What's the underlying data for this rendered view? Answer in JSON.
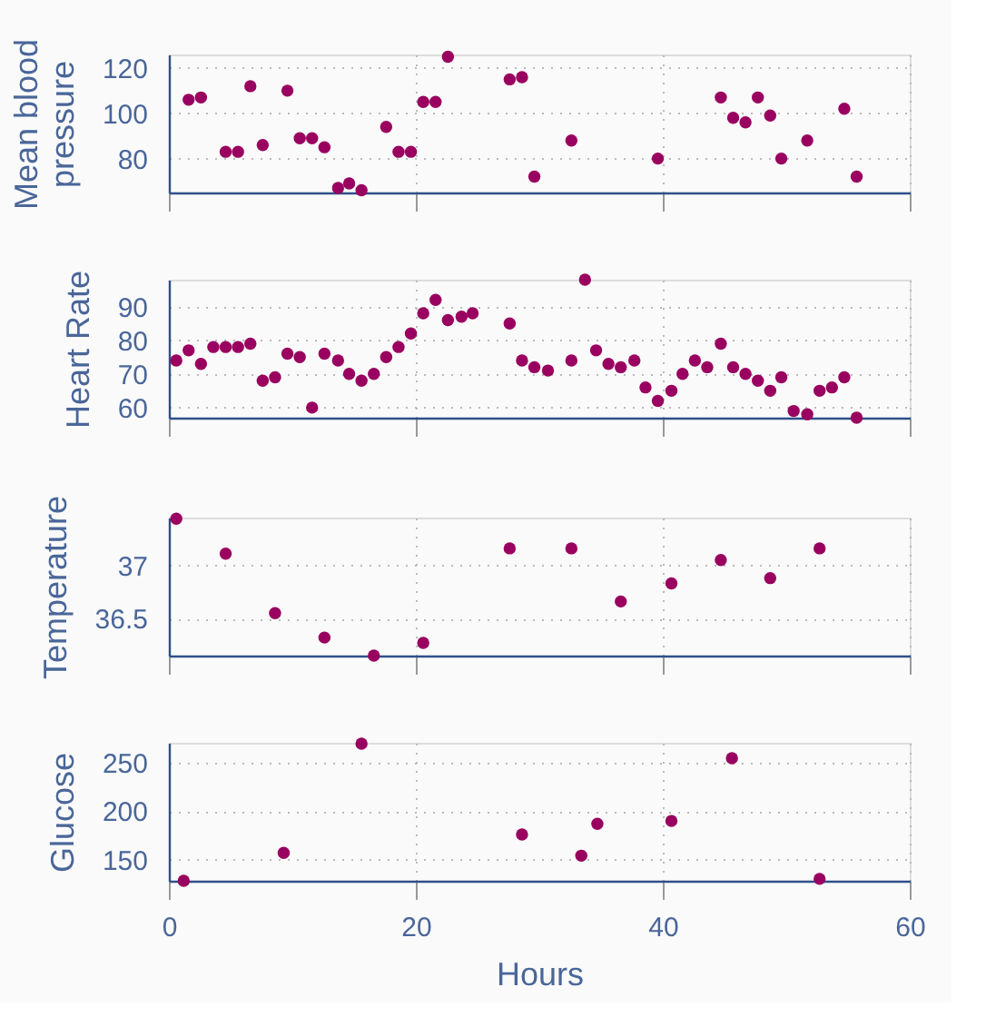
{
  "chart_data": [
    {
      "type": "scatter",
      "ylabel": "Mean blood pressure",
      "x": [
        1.6,
        2.6,
        4.6,
        5.6,
        6.6,
        7.6,
        9.6,
        10.6,
        11.6,
        12.6,
        13.7,
        14.6,
        15.6,
        17.6,
        18.6,
        19.6,
        20.6,
        21.6,
        22.6,
        27.6,
        28.6,
        29.6,
        32.6,
        39.6,
        44.7,
        45.7,
        46.7,
        47.7,
        48.7,
        49.6,
        51.7,
        54.7,
        55.7
      ],
      "series": [
        {
          "color": "#99005f",
          "values": [
            106,
            107,
            83,
            83,
            112,
            86,
            110,
            89,
            89,
            85,
            67,
            69,
            66,
            94,
            83,
            83,
            105,
            105,
            125,
            115,
            116,
            72,
            88,
            80,
            107,
            98,
            96,
            107,
            99,
            80,
            88,
            102,
            72
          ]
        }
      ],
      "xlim": [
        0,
        60
      ],
      "xticks": [
        0,
        20,
        40,
        60
      ],
      "ylim": [
        65,
        126
      ],
      "yticks": [
        80,
        100,
        120
      ],
      "grid": true,
      "marker": "circle",
      "tick_labels": "y",
      "legend": false
    },
    {
      "type": "scatter",
      "ylabel": "Heart Rate",
      "x": [
        0.6,
        1.6,
        2.6,
        3.6,
        4.6,
        5.6,
        6.6,
        7.6,
        8.6,
        9.6,
        10.6,
        11.6,
        12.6,
        13.7,
        14.6,
        15.6,
        16.6,
        17.6,
        18.6,
        19.6,
        20.6,
        21.6,
        22.6,
        23.7,
        24.6,
        27.6,
        28.6,
        29.6,
        30.7,
        32.6,
        33.7,
        34.6,
        35.6,
        36.6,
        37.7,
        38.6,
        39.6,
        40.7,
        41.6,
        42.6,
        43.6,
        44.7,
        45.7,
        46.7,
        47.7,
        48.7,
        49.6,
        50.6,
        51.7,
        52.7,
        53.7,
        54.7,
        55.7
      ],
      "series": [
        {
          "color": "#99005f",
          "values": [
            74,
            77,
            73,
            78,
            78,
            78,
            79,
            68,
            69,
            76,
            75,
            60,
            76,
            74,
            70,
            68,
            70,
            75,
            78,
            82,
            88,
            92,
            86,
            87,
            88,
            85,
            74,
            72,
            71,
            74,
            98,
            77,
            73,
            72,
            74,
            66,
            62,
            65,
            70,
            74,
            72,
            79,
            72,
            70,
            68,
            65,
            69,
            59,
            58,
            65,
            66,
            69,
            57
          ]
        }
      ],
      "xlim": [
        0,
        60
      ],
      "xticks": [
        0,
        20,
        40,
        60
      ],
      "ylim": [
        57,
        98
      ],
      "yticks": [
        60,
        70,
        80,
        90
      ],
      "grid": true,
      "marker": "circle",
      "tick_labels": "y",
      "legend": false
    },
    {
      "type": "scatter",
      "ylabel": "Temperature",
      "x": [
        0.6,
        4.6,
        8.6,
        12.6,
        16.6,
        20.6,
        27.6,
        32.6,
        36.6,
        40.7,
        44.7,
        48.7,
        52.7
      ],
      "series": [
        {
          "color": "#99005f",
          "values": [
            37.44,
            37.11,
            36.55,
            36.32,
            36.15,
            36.27,
            37.16,
            37.16,
            36.66,
            36.83,
            37.05,
            36.88,
            37.16
          ]
        }
      ],
      "xlim": [
        0,
        60
      ],
      "xticks": [
        0,
        20,
        40,
        60
      ],
      "ylim": [
        36.15,
        37.45
      ],
      "yticks": [
        36.5,
        37
      ],
      "grid": true,
      "marker": "circle",
      "tick_labels": "y",
      "legend": false
    },
    {
      "type": "scatter",
      "ylabel": "Glucose",
      "xlabel": "Hours",
      "x": [
        1.2,
        9.3,
        15.6,
        28.6,
        33.4,
        34.7,
        40.7,
        45.6,
        52.7
      ],
      "series": [
        {
          "color": "#99005f",
          "values": [
            128,
            157,
            270,
            176,
            154,
            187,
            190,
            255,
            130
          ]
        }
      ],
      "xlim": [
        0,
        60
      ],
      "xticks": [
        0,
        20,
        40,
        60
      ],
      "ylim": [
        128,
        271
      ],
      "yticks": [
        150,
        200,
        250
      ],
      "grid": true,
      "marker": "circle",
      "legend": false
    }
  ]
}
